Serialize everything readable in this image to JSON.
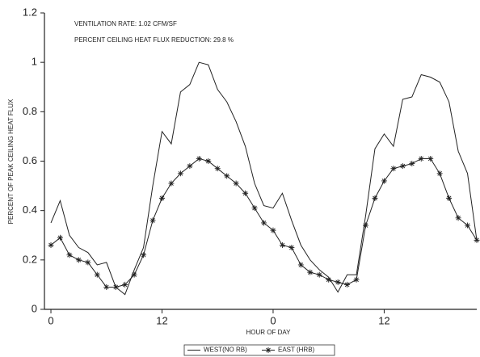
{
  "chart_data": {
    "type": "line",
    "annotations": [
      "VENTILATION RATE: 1.02 CFM/SF",
      "PERCENT CEILING HEAT FLUX REDUCTION: 29.8 %"
    ],
    "x_label": "HOUR OF DAY",
    "y_label": "PERCENT OF PEAK CEILING HEAT FLUX",
    "x": [
      0,
      1,
      2,
      3,
      4,
      5,
      6,
      7,
      8,
      9,
      10,
      11,
      12,
      13,
      14,
      15,
      16,
      17,
      18,
      19,
      20,
      21,
      22,
      23,
      24,
      25,
      26,
      27,
      28,
      29,
      30,
      31,
      32,
      33,
      34,
      35,
      36,
      37,
      38,
      39,
      40,
      41,
      42,
      43,
      44,
      45,
      46
    ],
    "series": [
      {
        "name": "WEST(NO RB)",
        "color": "#222222",
        "marker": "none",
        "values": [
          0.35,
          0.44,
          0.3,
          0.25,
          0.23,
          0.18,
          0.19,
          0.09,
          0.06,
          0.16,
          0.25,
          0.5,
          0.72,
          0.67,
          0.88,
          0.91,
          1.0,
          0.99,
          0.89,
          0.84,
          0.76,
          0.66,
          0.51,
          0.42,
          0.41,
          0.47,
          0.36,
          0.26,
          0.2,
          0.16,
          0.13,
          0.07,
          0.14,
          0.14,
          0.38,
          0.65,
          0.71,
          0.66,
          0.85,
          0.86,
          0.95,
          0.94,
          0.92,
          0.84,
          0.64,
          0.55,
          0.28
        ]
      },
      {
        "name": "EAST (HRB)",
        "color": "#222222",
        "marker": "star",
        "values": [
          0.26,
          0.29,
          0.22,
          0.2,
          0.19,
          0.14,
          0.09,
          0.09,
          0.1,
          0.14,
          0.22,
          0.36,
          0.45,
          0.51,
          0.55,
          0.58,
          0.61,
          0.6,
          0.57,
          0.54,
          0.51,
          0.47,
          0.41,
          0.35,
          0.32,
          0.26,
          0.25,
          0.18,
          0.15,
          0.14,
          0.12,
          0.11,
          0.1,
          0.12,
          0.34,
          0.45,
          0.52,
          0.57,
          0.58,
          0.59,
          0.61,
          0.61,
          0.55,
          0.45,
          0.37,
          0.34,
          0.28
        ]
      }
    ],
    "xlim": [
      -0.7,
      46
    ],
    "xticks": [
      0,
      12,
      {
        "value": 24,
        "label": "0"
      },
      {
        "value": 36,
        "label": "12"
      }
    ],
    "ylim": [
      0,
      1.2
    ],
    "yticks": [
      0,
      0.2,
      0.4,
      0.6,
      0.8,
      1,
      1.2
    ],
    "legend": "bottom"
  }
}
